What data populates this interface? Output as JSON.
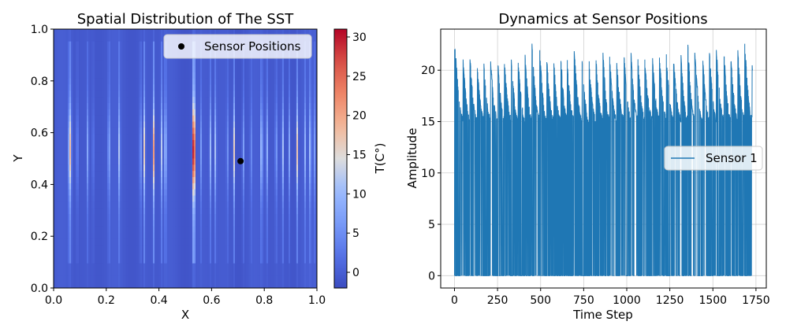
{
  "chart_data": [
    {
      "type": "heatmap",
      "title": "Spatial Distribution of The SST",
      "xlabel": "X",
      "ylabel": "Y",
      "xlim": [
        0.0,
        1.0
      ],
      "ylim": [
        0.0,
        1.0
      ],
      "x_ticks": [
        "0.0",
        "0.2",
        "0.4",
        "0.6",
        "0.8",
        "1.0"
      ],
      "y_ticks": [
        "0.0",
        "0.2",
        "0.4",
        "0.6",
        "0.8",
        "1.0"
      ],
      "colorbar": {
        "label": "T(C°)",
        "range": [
          -2,
          31
        ],
        "ticks": [
          "0",
          "5",
          "10",
          "15",
          "20",
          "25",
          "30"
        ],
        "tick_values": [
          0,
          5,
          10,
          15,
          20,
          25,
          30
        ],
        "colormap": "coolwarm"
      },
      "sensors": [
        {
          "x": 0.71,
          "y": 0.49
        }
      ],
      "legend": {
        "entries": [
          "Sensor Positions"
        ],
        "position": "upper-right"
      },
      "hot_columns": [
        {
          "x": 0.06,
          "t": 20
        },
        {
          "x": 0.065,
          "t": 16
        },
        {
          "x": 0.09,
          "t": 8
        },
        {
          "x": 0.13,
          "t": 10
        },
        {
          "x": 0.15,
          "t": 6
        },
        {
          "x": 0.21,
          "t": 14
        },
        {
          "x": 0.25,
          "t": 15
        },
        {
          "x": 0.33,
          "t": 12
        },
        {
          "x": 0.345,
          "t": 18
        },
        {
          "x": 0.38,
          "t": 22
        },
        {
          "x": 0.41,
          "t": 13
        },
        {
          "x": 0.425,
          "t": 19
        },
        {
          "x": 0.53,
          "t": 28
        },
        {
          "x": 0.535,
          "t": 26
        },
        {
          "x": 0.56,
          "t": 7
        },
        {
          "x": 0.595,
          "t": 12
        },
        {
          "x": 0.615,
          "t": 14
        },
        {
          "x": 0.66,
          "t": 8
        },
        {
          "x": 0.685,
          "t": 18
        },
        {
          "x": 0.72,
          "t": 10
        },
        {
          "x": 0.75,
          "t": 6
        },
        {
          "x": 0.79,
          "t": 20
        },
        {
          "x": 0.81,
          "t": 12
        },
        {
          "x": 0.845,
          "t": 11
        },
        {
          "x": 0.87,
          "t": 14
        },
        {
          "x": 0.895,
          "t": 9
        },
        {
          "x": 0.925,
          "t": 18
        },
        {
          "x": 0.955,
          "t": 10
        },
        {
          "x": 0.975,
          "t": 16
        },
        {
          "x": 0.99,
          "t": 8
        }
      ]
    },
    {
      "type": "line",
      "title": "Dynamics at Sensor Positions",
      "xlabel": "Time Step",
      "ylabel": "Amplitude",
      "xlim": [
        -80,
        1810
      ],
      "ylim": [
        -1.2,
        24
      ],
      "x_ticks": [
        "0",
        "250",
        "500",
        "750",
        "1000",
        "1250",
        "1500",
        "1750"
      ],
      "x_tick_values": [
        0,
        250,
        500,
        750,
        1000,
        1250,
        1500,
        1750
      ],
      "y_ticks": [
        "0",
        "5",
        "10",
        "15",
        "20"
      ],
      "y_tick_values": [
        0,
        5,
        10,
        15,
        20
      ],
      "grid": true,
      "legend": {
        "entries": [
          "Sensor 1"
        ],
        "position": "center-right"
      },
      "series": [
        {
          "name": "Sensor 1",
          "color": "#1f77b4",
          "x_range": [
            0,
            1730
          ],
          "baseline": 0,
          "cycle_peak_times": [
            5,
            50,
            90,
            130,
            170,
            210,
            250,
            290,
            330,
            370,
            410,
            450,
            495,
            535,
            575,
            615,
            655,
            695,
            740,
            780,
            820,
            860,
            900,
            940,
            985,
            1025,
            1065,
            1105,
            1150,
            1190,
            1230,
            1270,
            1315,
            1355,
            1395,
            1440,
            1480,
            1520,
            1565,
            1605,
            1645,
            1685,
            1728
          ],
          "cycle_peak_values": [
            21.9,
            21.0,
            21.2,
            20.9,
            20.6,
            20.7,
            21.3,
            20.6,
            20.8,
            21.0,
            21.4,
            22.3,
            21.9,
            21.1,
            21.2,
            22.0,
            20.7,
            21.7,
            21.2,
            21.1,
            21.5,
            22.3,
            21.3,
            21.0,
            21.3,
            21.4,
            21.0,
            20.8,
            20.9,
            21.4,
            21.5,
            21.3,
            21.2,
            22.2,
            21.6,
            21.3,
            21.8,
            22.0,
            21.5,
            21.0,
            21.7,
            22.6,
            20.2
          ],
          "trough_value": 15.2
        }
      ]
    }
  ]
}
